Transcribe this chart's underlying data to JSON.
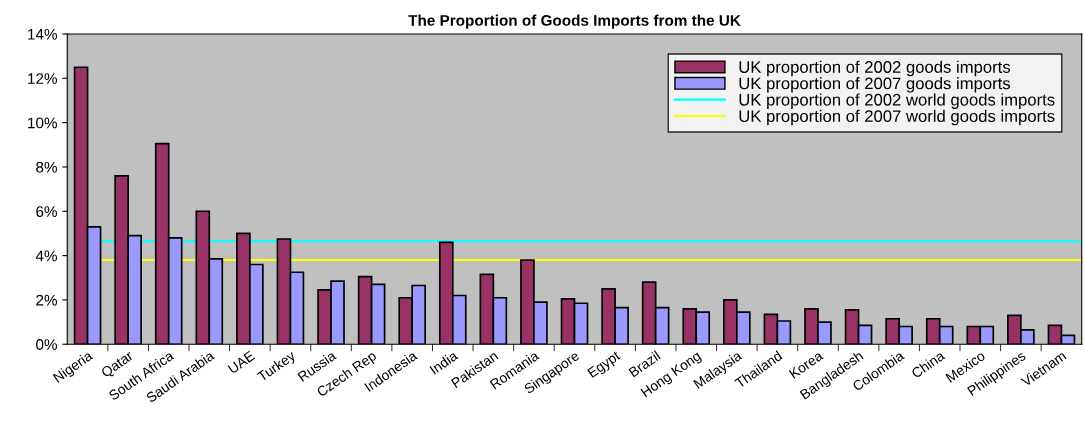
{
  "chart_data": {
    "type": "bar",
    "title": "The Proportion of Goods Imports from the UK",
    "categories": [
      "Nigeria",
      "Qatar",
      "South Africa",
      "Saudi Arabia",
      "UAE",
      "Turkey",
      "Russia",
      "Czech Rep",
      "Indonesia",
      "India",
      "Pakistan",
      "Romania",
      "Singapore",
      "Egypt",
      "Brazil",
      "Hong Kong",
      "Malaysia",
      "Thailand",
      "Korea",
      "Bangladesh",
      "Colombia",
      "China",
      "Mexico",
      "Philippines",
      "Vietnam"
    ],
    "series": [
      {
        "name": "UK proportion of 2002 goods imports",
        "color": "#993366",
        "values": [
          12.5,
          7.6,
          9.05,
          6.0,
          5.0,
          4.75,
          2.45,
          3.05,
          2.1,
          4.6,
          3.15,
          3.8,
          2.05,
          2.5,
          2.8,
          1.6,
          2.0,
          1.35,
          1.6,
          1.55,
          1.15,
          1.15,
          0.8,
          1.3,
          0.85
        ]
      },
      {
        "name": "UK proportion of 2007 goods imports",
        "color": "#9999ff",
        "values": [
          5.3,
          4.9,
          4.8,
          3.85,
          3.6,
          3.25,
          2.85,
          2.7,
          2.65,
          2.2,
          2.1,
          1.9,
          1.85,
          1.65,
          1.65,
          1.45,
          1.45,
          1.05,
          1.0,
          0.85,
          0.8,
          0.8,
          0.8,
          0.65,
          0.4
        ]
      }
    ],
    "ref_lines": [
      {
        "axis": "y",
        "value": 4.65,
        "label": "UK proportion of 2002 world goods imports",
        "color": "#00ffff"
      },
      {
        "axis": "y",
        "value": 3.8,
        "label": "UK proportion of 2007 world goods imports",
        "color": "#ffff00"
      }
    ],
    "ylim": [
      0,
      14
    ],
    "yticks": [
      {
        "value": 0,
        "label": "0%"
      },
      {
        "value": 2,
        "label": "2%"
      },
      {
        "value": 4,
        "label": "4%"
      },
      {
        "value": 6,
        "label": "6%"
      },
      {
        "value": 8,
        "label": "8%"
      },
      {
        "value": 10,
        "label": "10%"
      },
      {
        "value": 12,
        "label": "12%"
      },
      {
        "value": 14,
        "label": "14%"
      }
    ],
    "grid": false,
    "legend": "top right"
  }
}
